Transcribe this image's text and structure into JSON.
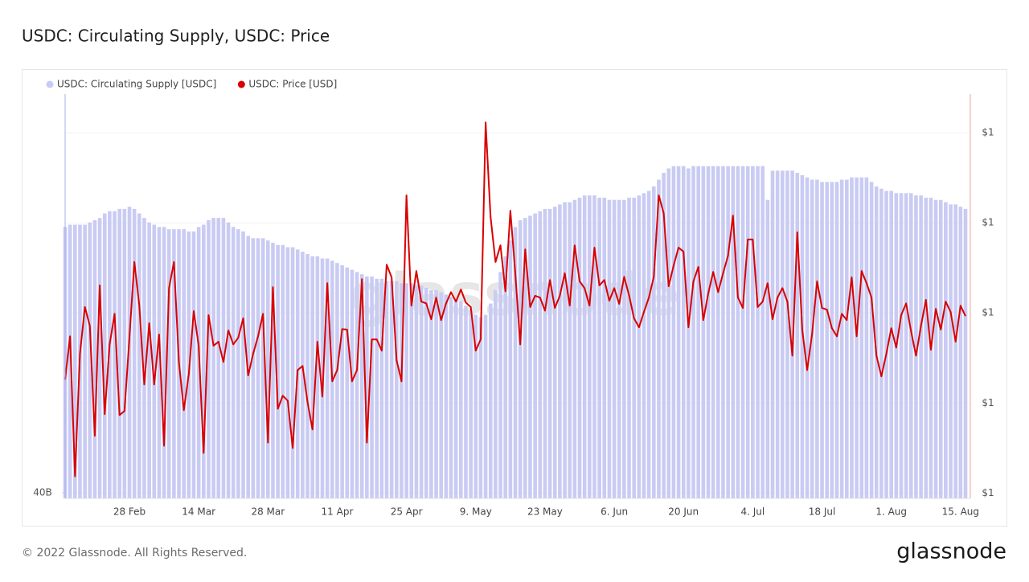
{
  "chart_data": {
    "type": "combo",
    "title": "USDC: Circulating Supply, USDC: Price",
    "watermark": "glassnode",
    "footer": "© 2022 Glassnode. All Rights Reserved.",
    "brand": "glassnode",
    "categories": [
      null,
      null,
      null,
      null,
      null,
      null,
      null,
      null,
      null,
      null,
      null,
      null,
      null,
      "28 Feb",
      null,
      null,
      null,
      null,
      null,
      null,
      null,
      null,
      null,
      null,
      null,
      null,
      null,
      "14 Mar",
      null,
      null,
      null,
      null,
      null,
      null,
      null,
      null,
      null,
      null,
      null,
      null,
      null,
      "28 Mar",
      null,
      null,
      null,
      null,
      null,
      null,
      null,
      null,
      null,
      null,
      null,
      null,
      null,
      "11 Apr",
      null,
      null,
      null,
      null,
      null,
      null,
      null,
      null,
      null,
      null,
      null,
      null,
      null,
      "25 Apr",
      null,
      null,
      null,
      null,
      null,
      null,
      null,
      null,
      null,
      null,
      null,
      null,
      null,
      "9. May",
      null,
      null,
      null,
      null,
      null,
      null,
      null,
      null,
      null,
      null,
      null,
      null,
      null,
      "23 May",
      null,
      null,
      null,
      null,
      null,
      null,
      null,
      null,
      null,
      null,
      null,
      null,
      null,
      "6. Jun",
      null,
      null,
      null,
      null,
      null,
      null,
      null,
      null,
      null,
      null,
      null,
      null,
      null,
      "20 Jun",
      null,
      null,
      null,
      null,
      null,
      null,
      null,
      null,
      null,
      null,
      null,
      null,
      null,
      "4. Jul",
      null,
      null,
      null,
      null,
      null,
      null,
      null,
      null,
      null,
      null,
      null,
      null,
      null,
      "18 Jul",
      null,
      null,
      null,
      null,
      null,
      null,
      null,
      null,
      null,
      null,
      null,
      null,
      null,
      "1. Aug",
      null,
      null,
      null,
      null,
      null,
      null,
      null,
      null,
      null,
      null,
      null,
      null,
      null,
      "15. Aug",
      null
    ],
    "series": [
      {
        "name": "USDC: Circulating Supply [USDC]",
        "type": "bar",
        "color": "#c9cbf3",
        "axis": "y",
        "values": [
          51.8,
          51.9,
          51.9,
          51.9,
          51.9,
          52.0,
          52.1,
          52.2,
          52.4,
          52.5,
          52.5,
          52.6,
          52.6,
          52.7,
          52.6,
          52.4,
          52.2,
          52.0,
          51.9,
          51.8,
          51.8,
          51.7,
          51.7,
          51.7,
          51.7,
          51.6,
          51.6,
          51.8,
          51.9,
          52.1,
          52.2,
          52.2,
          52.2,
          52.0,
          51.8,
          51.7,
          51.6,
          51.4,
          51.3,
          51.3,
          51.3,
          51.2,
          51.1,
          51.0,
          51.0,
          50.9,
          50.9,
          50.8,
          50.7,
          50.6,
          50.5,
          50.5,
          50.4,
          50.4,
          50.3,
          50.2,
          50.1,
          50.0,
          49.9,
          49.8,
          49.7,
          49.6,
          49.6,
          49.5,
          49.5,
          49.4,
          49.4,
          49.4,
          49.3,
          49.3,
          49.3,
          49.2,
          49.2,
          49.1,
          49.0,
          49.0,
          48.9,
          48.8,
          48.7,
          48.6,
          48.5,
          48.3,
          48.1,
          47.9,
          47.8,
          47.9,
          48.4,
          49.0,
          49.8,
          50.5,
          51.2,
          51.8,
          52.1,
          52.2,
          52.3,
          52.4,
          52.5,
          52.6,
          52.6,
          52.7,
          52.8,
          52.9,
          52.9,
          53.0,
          53.1,
          53.2,
          53.2,
          53.2,
          53.1,
          53.1,
          53.0,
          53.0,
          53.0,
          53.0,
          53.1,
          53.1,
          53.2,
          53.3,
          53.4,
          53.6,
          53.9,
          54.2,
          54.4,
          54.5,
          54.5,
          54.5,
          54.4,
          54.5,
          54.5,
          54.5,
          54.5,
          54.5,
          54.5,
          54.5,
          54.5,
          54.5,
          54.5,
          54.5,
          54.5,
          54.5,
          54.5,
          54.5,
          53.0,
          54.3,
          54.3,
          54.3,
          54.3,
          54.3,
          54.2,
          54.1,
          54.0,
          53.9,
          53.9,
          53.8,
          53.8,
          53.8,
          53.8,
          53.9,
          53.9,
          54.0,
          54.0,
          54.0,
          54.0,
          53.8,
          53.6,
          53.5,
          53.4,
          53.4,
          53.3,
          53.3,
          53.3,
          53.3,
          53.2,
          53.2,
          53.1,
          53.1,
          53.0,
          53.0,
          52.9,
          52.8,
          52.8,
          52.7,
          52.6
        ]
      },
      {
        "name": "USDC: Price [USD]",
        "type": "line",
        "color": "#d90000",
        "axis": "y2",
        "values": [
          0.99852,
          0.99948,
          0.99637,
          0.99909,
          1.00013,
          0.99971,
          0.99727,
          1.00061,
          0.99775,
          0.9993,
          0.99998,
          0.99773,
          0.99782,
          0.99945,
          1.00113,
          1.00016,
          0.99841,
          0.99977,
          0.99841,
          0.99952,
          0.99705,
          1.00055,
          1.00113,
          0.99891,
          0.99784,
          0.99864,
          1.00004,
          0.99927,
          0.99689,
          0.99995,
          0.99927,
          0.99936,
          0.99891,
          0.99961,
          0.9993,
          0.99945,
          0.99988,
          0.99861,
          0.99909,
          0.99948,
          0.99998,
          0.99712,
          1.00057,
          0.99787,
          0.99816,
          0.99805,
          0.997,
          0.99873,
          0.99882,
          0.99802,
          0.99741,
          0.99936,
          0.99814,
          1.00066,
          0.99848,
          0.99873,
          0.99964,
          0.99963,
          0.99848,
          0.99873,
          1.00075,
          0.99712,
          0.99941,
          0.99941,
          0.99916,
          1.00107,
          1.00079,
          0.99895,
          0.99848,
          1.00261,
          1.00016,
          1.00093,
          1.00025,
          1.00021,
          0.99986,
          1.00034,
          0.99984,
          1.00021,
          1.00046,
          1.00025,
          1.00052,
          1.00023,
          1.00013,
          0.99916,
          0.99941,
          1.00423,
          1.00213,
          1.00113,
          1.0015,
          1.00048,
          1.00227,
          1.00088,
          0.9993,
          1.00141,
          1.00013,
          1.00038,
          1.00034,
          1.00005,
          1.00073,
          1.00011,
          1.00038,
          1.00088,
          1.00016,
          1.0015,
          1.0007,
          1.00055,
          1.00016,
          1.00145,
          1.00061,
          1.00073,
          1.00027,
          1.00055,
          1.0002,
          1.0008,
          1.00039,
          0.99988,
          0.99968,
          1.00002,
          1.00034,
          1.0008,
          1.00261,
          1.00221,
          1.00059,
          1.00105,
          1.00145,
          1.00136,
          0.99968,
          1.0007,
          1.00102,
          0.99984,
          1.00043,
          1.00091,
          1.00046,
          1.00088,
          1.00127,
          1.00216,
          1.00034,
          1.00011,
          1.00163,
          1.00163,
          1.00013,
          1.00025,
          1.00066,
          0.99986,
          1.00034,
          1.00055,
          1.00025,
          0.99905,
          1.00179,
          0.99963,
          0.99873,
          0.99954,
          1.0007,
          1.00011,
          1.00007,
          0.99966,
          0.99948,
          0.99998,
          0.99984,
          1.00079,
          0.99948,
          1.00093,
          1.00066,
          1.00034,
          0.99905,
          0.99859,
          0.99909,
          0.99966,
          0.99923,
          0.99995,
          1.00021,
          0.99959,
          0.99905,
          0.99971,
          1.00029,
          0.99918,
          1.00009,
          0.99963,
          1.00025,
          1.00002,
          0.99936,
          1.00016,
          0.99993
        ]
      }
    ],
    "ylim": [
      39.75,
      57.7
    ],
    "yticks": [
      {
        "value": 40,
        "label": "40B"
      }
    ],
    "y2lim": [
      0.99588,
      1.00486
    ],
    "y2ticks": [
      {
        "value": 1.004,
        "label": "$1"
      },
      {
        "value": 1.002,
        "label": "$1"
      },
      {
        "value": 1.0,
        "label": "$1"
      },
      {
        "value": 0.998,
        "label": "$1"
      },
      {
        "value": 0.996,
        "label": "$1"
      }
    ],
    "legend": "top-left"
  }
}
